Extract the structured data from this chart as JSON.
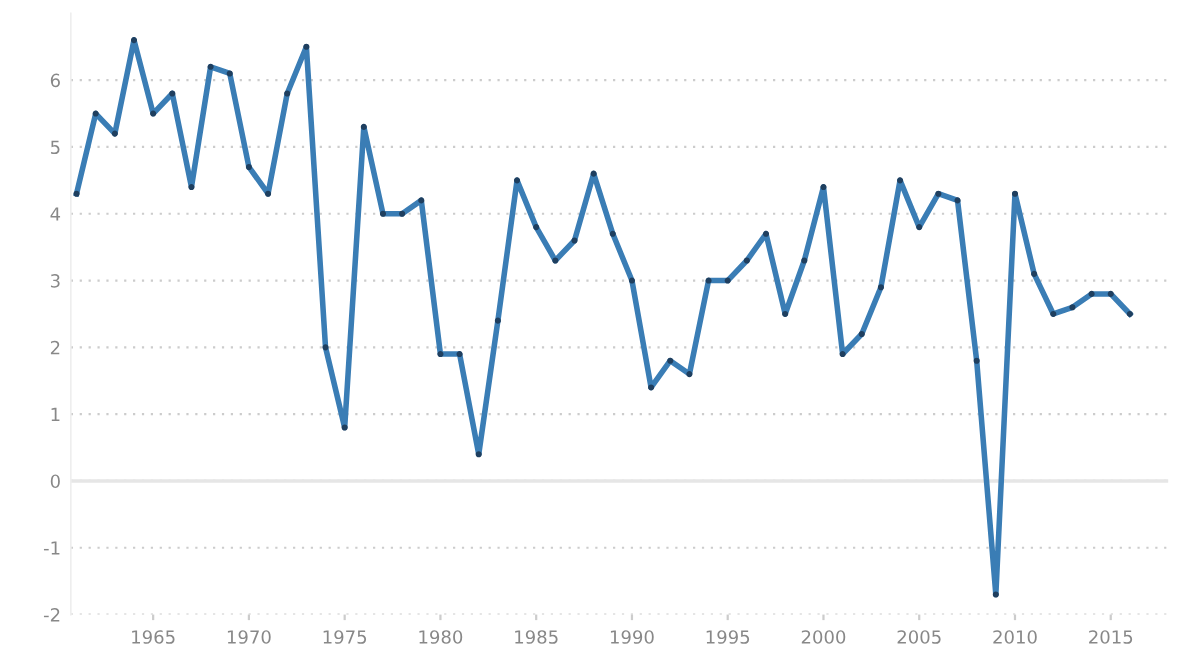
{
  "chart_data": {
    "type": "line",
    "x": [
      1961,
      1962,
      1963,
      1964,
      1965,
      1966,
      1967,
      1968,
      1969,
      1970,
      1971,
      1972,
      1973,
      1974,
      1975,
      1976,
      1977,
      1978,
      1979,
      1980,
      1981,
      1982,
      1983,
      1984,
      1985,
      1986,
      1987,
      1988,
      1989,
      1990,
      1991,
      1992,
      1993,
      1994,
      1995,
      1996,
      1997,
      1998,
      1999,
      2000,
      2001,
      2002,
      2003,
      2004,
      2005,
      2006,
      2007,
      2008,
      2009,
      2010,
      2011,
      2012,
      2013,
      2014,
      2015,
      2016
    ],
    "series": [
      {
        "color": "#3a7db5",
        "values": [
          4.3,
          5.5,
          5.2,
          6.6,
          5.5,
          5.8,
          4.4,
          6.2,
          6.1,
          4.7,
          4.3,
          5.8,
          6.5,
          2.0,
          0.8,
          5.3,
          4.0,
          4.0,
          4.2,
          1.9,
          1.9,
          0.4,
          2.4,
          4.5,
          3.8,
          3.3,
          3.6,
          4.6,
          3.7,
          3.0,
          1.4,
          1.8,
          1.6,
          3.0,
          3.0,
          3.3,
          3.7,
          2.5,
          3.3,
          4.4,
          1.9,
          2.2,
          2.9,
          4.5,
          3.8,
          4.3,
          4.2,
          1.8,
          -1.7,
          4.3,
          3.1,
          2.5,
          2.6,
          2.8,
          2.8,
          2.5
        ]
      }
    ],
    "xlim": [
      1960.7,
      2018
    ],
    "ylim": [
      -2,
      7
    ],
    "xticks": [
      1965,
      1970,
      1975,
      1980,
      1985,
      1990,
      1995,
      2000,
      2005,
      2010,
      2015
    ],
    "yticks": [
      -2,
      -1,
      0,
      1,
      2,
      3,
      4,
      5,
      6
    ],
    "grid": "y",
    "marker": "circle",
    "line_style": "solid",
    "ref_lines": [
      {
        "axis": "y",
        "value": 0,
        "color": "#e6e6e6",
        "line_style": "solid"
      }
    ]
  }
}
